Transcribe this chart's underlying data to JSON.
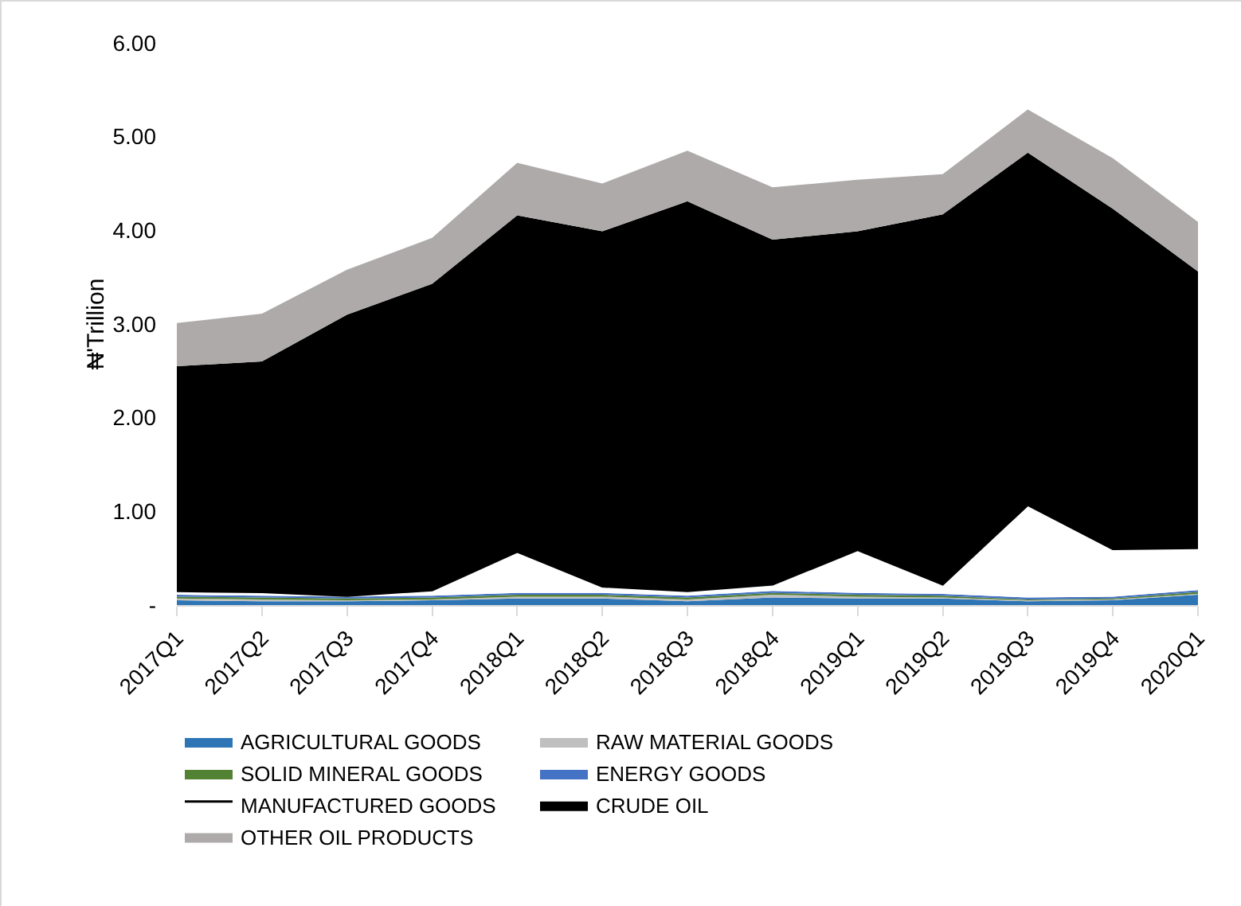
{
  "chart_data": {
    "type": "area",
    "stacked": true,
    "ylabel": "₦'Trillion",
    "categories": [
      "2017Q1",
      "2017Q2",
      "2017Q3",
      "2017Q4",
      "2018Q1",
      "2018Q2",
      "2018Q3",
      "2018Q4",
      "2019Q1",
      "2019Q2",
      "2019Q3",
      "2019Q4",
      "2020Q1"
    ],
    "series": [
      {
        "name": "AGRICULTURAL GOODS",
        "color": "#2e75b6",
        "values": [
          0.05,
          0.04,
          0.04,
          0.05,
          0.07,
          0.07,
          0.04,
          0.08,
          0.07,
          0.07,
          0.04,
          0.05,
          0.11
        ]
      },
      {
        "name": "RAW MATERIAL GOODS",
        "color": "#bfbfbf",
        "values": [
          0.02,
          0.02,
          0.01,
          0.01,
          0.02,
          0.02,
          0.02,
          0.03,
          0.02,
          0.01,
          0.01,
          0.01,
          0.01
        ]
      },
      {
        "name": "SOLID MINERAL GOODS",
        "color": "#548235",
        "values": [
          0.02,
          0.02,
          0.02,
          0.02,
          0.02,
          0.02,
          0.02,
          0.02,
          0.02,
          0.02,
          0.01,
          0.01,
          0.02
        ]
      },
      {
        "name": "ENERGY GOODS",
        "color": "#4472c4",
        "values": [
          0.02,
          0.02,
          0.02,
          0.02,
          0.02,
          0.02,
          0.02,
          0.02,
          0.02,
          0.02,
          0.02,
          0.02,
          0.02
        ]
      },
      {
        "name": "MANUFACTURED GOODS",
        "color": "#ffffff",
        "values": [
          0.04,
          0.04,
          0.01,
          0.06,
          0.44,
          0.07,
          0.05,
          0.07,
          0.46,
          0.1,
          0.99,
          0.51,
          0.45
        ]
      },
      {
        "name": "CRUDE OIL",
        "color": "#000000",
        "values": [
          2.4,
          2.46,
          3.0,
          3.27,
          3.59,
          3.79,
          4.16,
          3.68,
          3.4,
          3.95,
          3.76,
          3.63,
          2.95
        ]
      },
      {
        "name": "OTHER OIL PRODUCTS",
        "color": "#aeaaaa",
        "values": [
          0.46,
          0.51,
          0.48,
          0.49,
          0.56,
          0.51,
          0.54,
          0.56,
          0.55,
          0.43,
          0.46,
          0.54,
          0.53
        ]
      }
    ],
    "ylim": [
      0,
      6
    ],
    "yticks": [
      {
        "value": 0,
        "label": "-"
      },
      {
        "value": 1,
        "label": "1.00"
      },
      {
        "value": 2,
        "label": "2.00"
      },
      {
        "value": 3,
        "label": "3.00"
      },
      {
        "value": 4,
        "label": "4.00"
      },
      {
        "value": 5,
        "label": "5.00"
      },
      {
        "value": 6,
        "label": "6.00"
      }
    ],
    "grid": false,
    "legend": "bottom"
  }
}
